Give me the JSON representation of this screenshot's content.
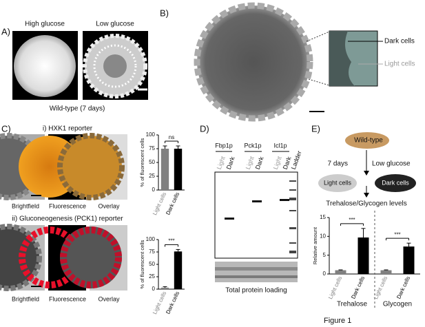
{
  "figure_label": "Figure 1",
  "panel_a": {
    "label": "A)",
    "high_glucose": "High glucose",
    "low_glucose": "Low glucose",
    "caption": "Wild-type (7 days)"
  },
  "panel_b": {
    "label": "B)",
    "dark_cells": "Dark cells",
    "light_cells": "Light cells"
  },
  "panel_c": {
    "label": "C)",
    "reporter_i": "i) HXK1 reporter",
    "reporter_ii": "ii) Gluconeogenesis (PCK1) reporter",
    "image_labels_i": [
      "Brightfield",
      "Fluorescence",
      "Overlay"
    ],
    "image_labels_ii": [
      "Brightfield",
      "Fluorescence",
      "Overlay"
    ]
  },
  "panel_d": {
    "label": "D)",
    "proteins": [
      "Fbp1p",
      "Pck1p",
      "Icl1p"
    ],
    "lanes": [
      "Light",
      "Dark",
      "Light",
      "Dark",
      "Light",
      "Dark",
      "Ladder"
    ],
    "caption": "Total protein loading"
  },
  "panel_e": {
    "label": "E)",
    "wild_type": "Wild-type",
    "time": "7 days",
    "condition": "Low glucose",
    "light_cells": "Light cells",
    "dark_cells": "Dark cells",
    "outcome": "Trehalose/Glycogen levels"
  },
  "chart_data": [
    {
      "type": "bar",
      "ylabel": "% of fluorescent cells",
      "categories": [
        "Light cells",
        "Dark cells"
      ],
      "values": [
        75,
        75
      ],
      "errors": [
        5,
        5
      ],
      "colors": [
        "#808080",
        "#000000"
      ],
      "annotations": [
        "ns"
      ],
      "ylim": [
        0,
        100
      ],
      "yticks": [
        0,
        25,
        50,
        75,
        100
      ]
    },
    {
      "type": "bar",
      "ylabel": "% of fluorescent cells",
      "categories": [
        "Light cells",
        "Dark cells"
      ],
      "values": [
        3,
        76
      ],
      "errors": [
        2,
        4
      ],
      "colors": [
        "#808080",
        "#000000"
      ],
      "annotations": [
        "***"
      ],
      "ylim": [
        0,
        100
      ],
      "yticks": [
        0,
        25,
        50,
        75,
        100
      ]
    },
    {
      "type": "bar",
      "ylabel": "Relative amount",
      "categories": [
        "Light cells",
        "Dark cells",
        "Light cells",
        "Dark cells"
      ],
      "values": [
        1,
        9.7,
        1,
        7.3
      ],
      "errors": [
        0.1,
        2.4,
        0.1,
        0.9
      ],
      "colors": [
        "#808080",
        "#000000",
        "#808080",
        "#000000"
      ],
      "annotations": [
        "***",
        "***"
      ],
      "group_labels": [
        "Trehalose",
        "Glycogen"
      ],
      "ylim": [
        0,
        15
      ],
      "yticks": [
        0,
        5,
        10,
        15
      ]
    }
  ]
}
